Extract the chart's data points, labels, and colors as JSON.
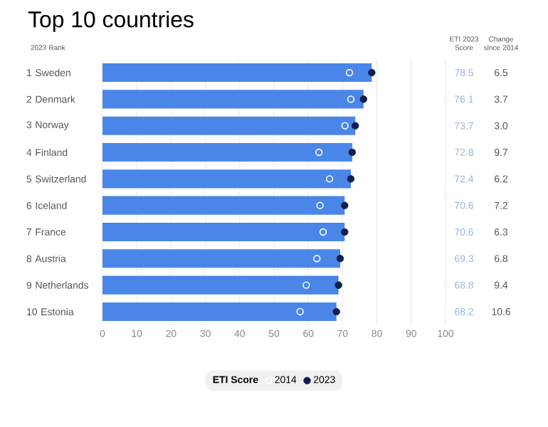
{
  "chart_data": {
    "type": "bar",
    "orientation": "horizontal",
    "title": "Top 10 countries",
    "categories": [
      "1 Sweden",
      "2 Denmark",
      "3 Norway",
      "4 Finland",
      "5 Switzerland",
      "6 Iceland",
      "7 France",
      "8 Austria",
      "9 Netherlands",
      "10 Estonia"
    ],
    "series": [
      {
        "type": "bar",
        "color": "#4a86e8",
        "values": [
          78.5,
          76.1,
          73.7,
          72.8,
          72.4,
          70.6,
          70.6,
          69.3,
          68.8,
          68.2
        ],
        "value_labels": [
          "78.5",
          "76.1",
          "73.7",
          "72.8",
          "72.4",
          "70.6",
          "70.6",
          "69.3",
          "68.8",
          "68.2"
        ]
      },
      {
        "type": "scatter",
        "name": "2014",
        "color": "#ffffff",
        "values": [
          72.0,
          72.4,
          70.7,
          63.1,
          66.2,
          63.4,
          64.3,
          62.5,
          59.4,
          57.6
        ]
      },
      {
        "type": "scatter",
        "name": "2023",
        "color": "#0d1f4f",
        "values": [
          78.5,
          76.1,
          73.7,
          72.8,
          72.4,
          70.6,
          70.6,
          69.3,
          68.8,
          68.2
        ]
      }
    ],
    "xlim": [
      0,
      100
    ],
    "xticks": [
      0,
      10,
      20,
      30,
      40,
      50,
      60,
      70,
      80,
      90,
      100
    ],
    "grid": "x",
    "legend": "bottom",
    "legend_title": "ETI Score",
    "marker": "circle",
    "annotations": [
      "2023 Rank",
      "ETI 2023 Score",
      "Change since 2014",
      "6.5",
      "3.7",
      "3.0",
      "9.7",
      "6.2",
      "7.2",
      "6.3",
      "6.8",
      "9.4",
      "10.6"
    ]
  }
}
